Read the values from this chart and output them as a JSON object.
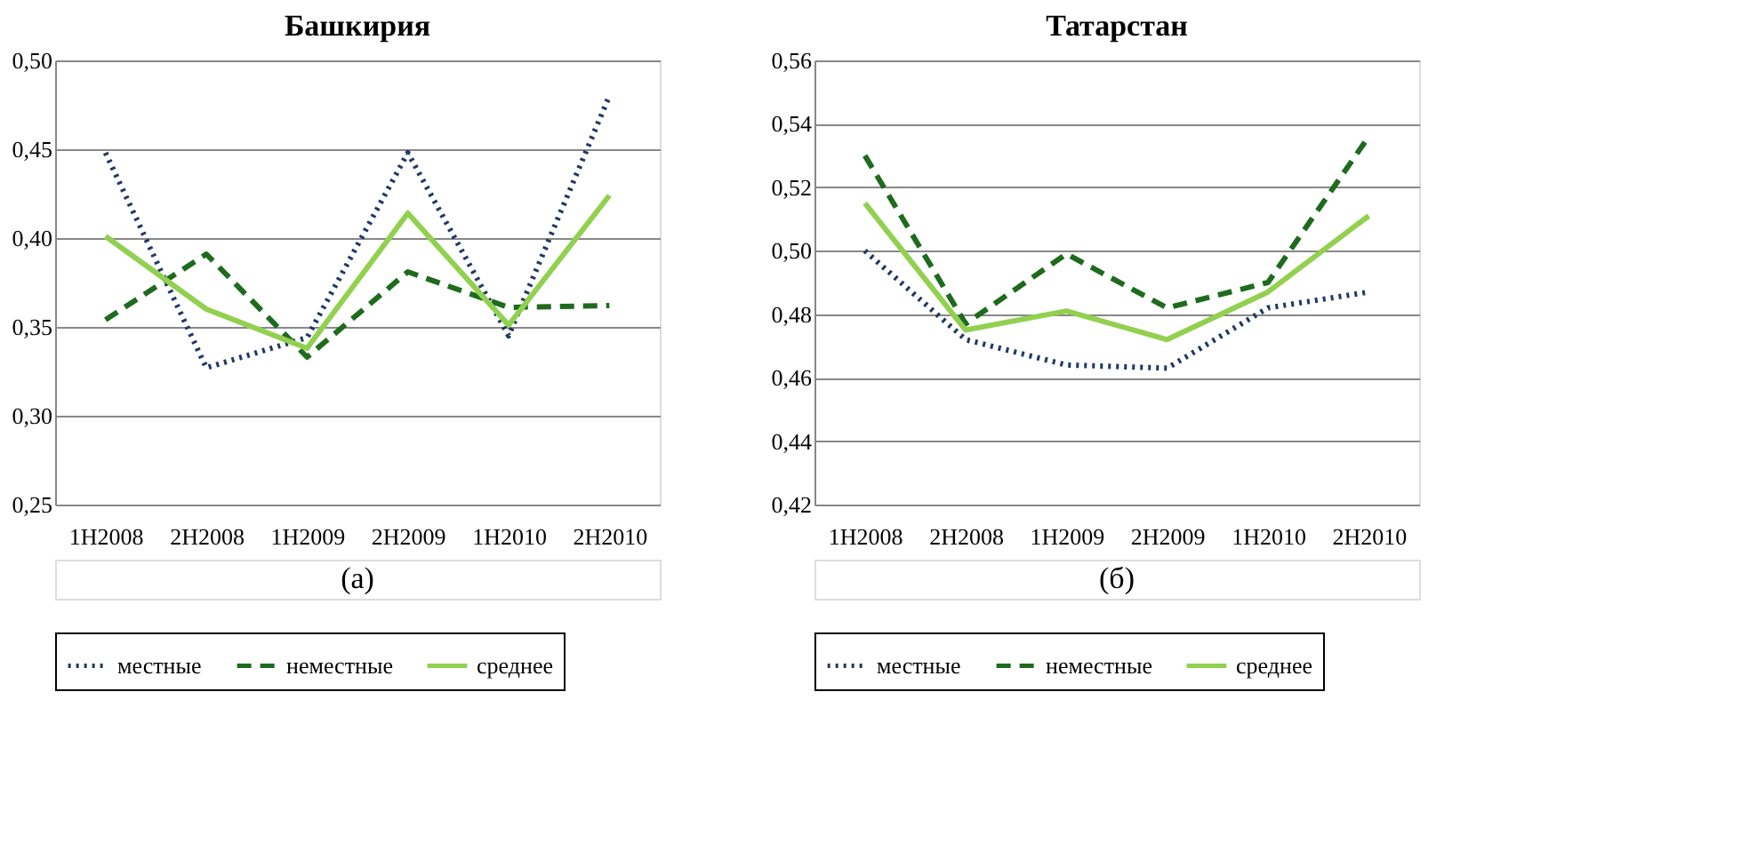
{
  "chart_data": [
    {
      "type": "line",
      "title": "Башкирия",
      "categories": [
        "1H2008",
        "2H2008",
        "1H2009",
        "2H2009",
        "1H2010",
        "2H2010"
      ],
      "ylim": [
        0.25,
        0.5
      ],
      "yticks": [
        {
          "value": 0.25,
          "label": "0,25"
        },
        {
          "value": 0.3,
          "label": "0,30"
        },
        {
          "value": 0.35,
          "label": "0,35"
        },
        {
          "value": 0.4,
          "label": "0,40"
        },
        {
          "value": 0.45,
          "label": "0,45"
        },
        {
          "value": 0.5,
          "label": "0,50"
        }
      ],
      "grid": "y",
      "legend": "bottom",
      "annotations": [
        "(а)"
      ],
      "series": [
        {
          "name": "местные",
          "color": "#1f3864",
          "line_style": "dotted",
          "values": [
            0.448,
            0.327,
            0.344,
            0.448,
            0.345,
            0.48
          ]
        },
        {
          "name": "неместные",
          "color": "#1e6b1e",
          "line_style": "dashed",
          "values": [
            0.354,
            0.391,
            0.333,
            0.381,
            0.361,
            0.362
          ]
        },
        {
          "name": "среднее",
          "color": "#92d050",
          "line_style": "solid",
          "values": [
            0.401,
            0.36,
            0.338,
            0.414,
            0.351,
            0.424
          ]
        }
      ]
    },
    {
      "type": "line",
      "title": "Татарстан",
      "categories": [
        "1H2008",
        "2H2008",
        "1H2009",
        "2H2009",
        "1H2010",
        "2H2010"
      ],
      "ylim": [
        0.42,
        0.56
      ],
      "yticks": [
        {
          "value": 0.42,
          "label": "0,42"
        },
        {
          "value": 0.44,
          "label": "0,44"
        },
        {
          "value": 0.46,
          "label": "0,46"
        },
        {
          "value": 0.48,
          "label": "0,48"
        },
        {
          "value": 0.5,
          "label": "0,50"
        },
        {
          "value": 0.52,
          "label": "0,52"
        },
        {
          "value": 0.54,
          "label": "0,54"
        },
        {
          "value": 0.56,
          "label": "0,56"
        }
      ],
      "grid": "y",
      "legend": "bottom",
      "annotations": [
        "(б)"
      ],
      "series": [
        {
          "name": "местные",
          "color": "#1f3864",
          "line_style": "dotted",
          "values": [
            0.5,
            0.472,
            0.464,
            0.463,
            0.482,
            0.487
          ]
        },
        {
          "name": "неместные",
          "color": "#1e6b1e",
          "line_style": "dashed",
          "values": [
            0.53,
            0.477,
            0.499,
            0.482,
            0.49,
            0.536
          ]
        },
        {
          "name": "среднее",
          "color": "#92d050",
          "line_style": "solid",
          "values": [
            0.515,
            0.475,
            0.481,
            0.472,
            0.487,
            0.511
          ]
        }
      ]
    }
  ]
}
